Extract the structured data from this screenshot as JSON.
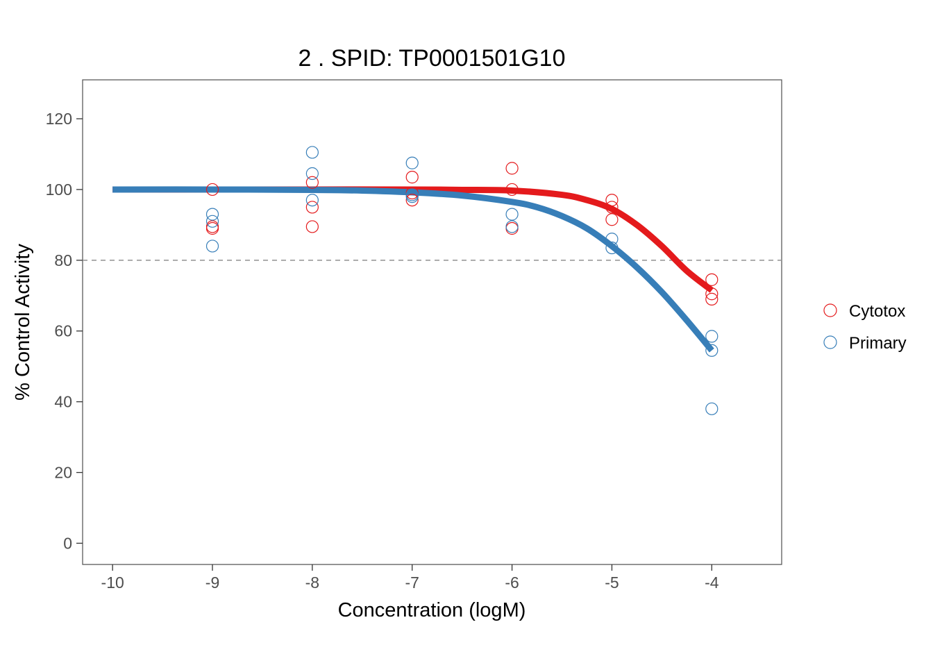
{
  "chart_data": {
    "type": "scatter",
    "title": "2 . SPID: TP0001501G10",
    "xlabel": "Concentration (logM)",
    "ylabel": "% Control Activity",
    "xlim": [
      -10.3,
      -3.3
    ],
    "ylim": [
      -6,
      131
    ],
    "x_ticks": [
      -10,
      -9,
      -8,
      -7,
      -6,
      -5,
      -4
    ],
    "x_tick_labels": [
      "-10",
      "-9",
      "-8",
      "-7",
      "-6",
      "-5",
      "-4"
    ],
    "y_ticks": [
      0,
      20,
      40,
      60,
      80,
      100,
      120
    ],
    "y_tick_labels": [
      "0",
      "20",
      "40",
      "60",
      "80",
      "100",
      "120"
    ],
    "reference_line": {
      "y": 80,
      "style": "dashed",
      "color": "#999999"
    },
    "grid": false,
    "legend_position": "right",
    "series": [
      {
        "name": "Cytotox",
        "color": "#E41A1C",
        "marker": "open-circle",
        "points": [
          [
            -9,
            100
          ],
          [
            -9,
            89
          ],
          [
            -9,
            89.5
          ],
          [
            -8,
            102
          ],
          [
            -8,
            95
          ],
          [
            -8,
            89.5
          ],
          [
            -7,
            103.5
          ],
          [
            -7,
            99
          ],
          [
            -7,
            97
          ],
          [
            -6,
            106
          ],
          [
            -6,
            100
          ],
          [
            -6,
            89
          ],
          [
            -5,
            97
          ],
          [
            -5,
            95
          ],
          [
            -5,
            91.5
          ],
          [
            -4,
            74.5
          ],
          [
            -4,
            70.5
          ],
          [
            -4,
            69
          ]
        ],
        "fit_curve": {
          "x": [
            -10,
            -9,
            -8,
            -7,
            -6.5,
            -6,
            -5.5,
            -5.25,
            -5,
            -4.75,
            -4.5,
            -4.25,
            -4
          ],
          "y": [
            100,
            100,
            100,
            100,
            99.9,
            99.7,
            98.5,
            97,
            94.5,
            90,
            84,
            77,
            71.5
          ]
        }
      },
      {
        "name": "Primary",
        "color": "#377EB8",
        "marker": "open-circle",
        "points": [
          [
            -9,
            93
          ],
          [
            -9,
            91
          ],
          [
            -9,
            84
          ],
          [
            -8,
            110.5
          ],
          [
            -8,
            104.5
          ],
          [
            -8,
            97
          ],
          [
            -7,
            107.5
          ],
          [
            -7,
            98.5
          ],
          [
            -7,
            98
          ],
          [
            -6,
            93
          ],
          [
            -6,
            89.5
          ],
          [
            -5,
            86
          ],
          [
            -5,
            83.5
          ],
          [
            -4,
            58.5
          ],
          [
            -4,
            54.5
          ],
          [
            -4,
            38
          ]
        ],
        "fit_curve": {
          "x": [
            -10,
            -9,
            -8,
            -7.5,
            -7,
            -6.5,
            -6,
            -5.75,
            -5.5,
            -5.25,
            -5,
            -4.75,
            -4.5,
            -4.25,
            -4
          ],
          "y": [
            100,
            100,
            99.9,
            99.7,
            99.2,
            98.3,
            96.5,
            95,
            92.5,
            89,
            84,
            78,
            71,
            63,
            54.5
          ]
        }
      }
    ]
  }
}
